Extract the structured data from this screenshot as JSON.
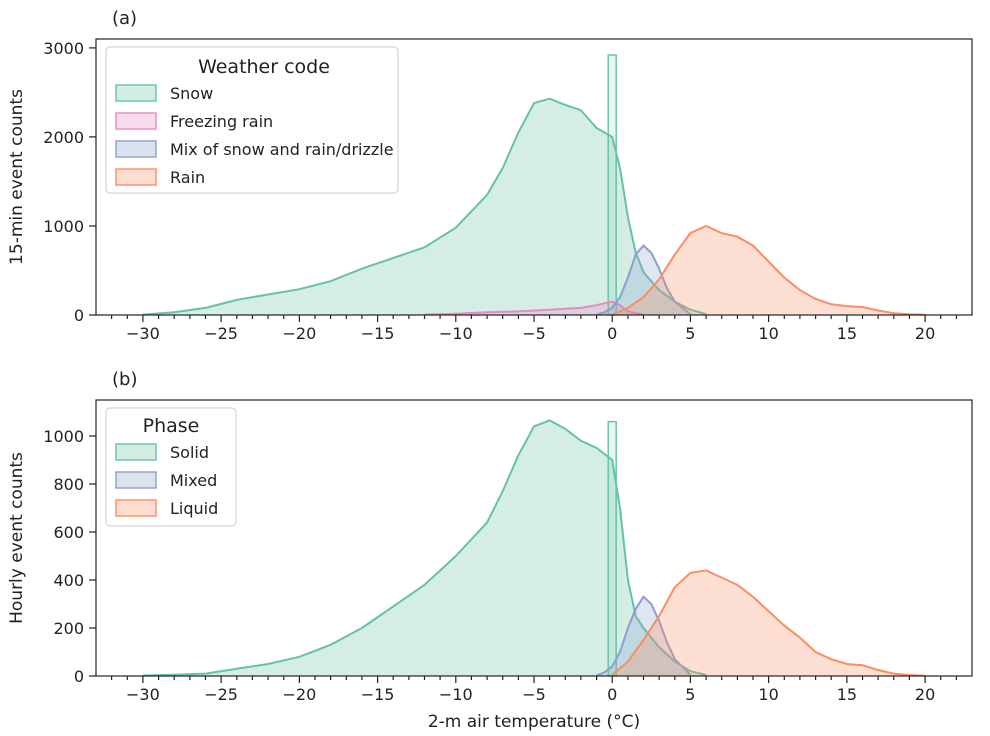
{
  "chart_data": [
    {
      "panel": "(a)",
      "type": "area",
      "xlabel": "",
      "ylabel": "15-min event counts",
      "xlim": [
        -33,
        23
      ],
      "ylim": [
        0,
        3100
      ],
      "xticks": [
        -30,
        -25,
        -20,
        -15,
        -10,
        -5,
        0,
        5,
        10,
        15,
        20
      ],
      "yticks": [
        0,
        1000,
        2000,
        3000
      ],
      "legend": {
        "title": "Weather code",
        "placement": "top-left"
      },
      "grid": false,
      "series": [
        {
          "name": "Snow",
          "color": "#66c2a5",
          "x": [
            -30,
            -28,
            -26,
            -24,
            -22,
            -20,
            -18,
            -16,
            -14,
            -12,
            -10,
            -8,
            -7,
            -6,
            -5,
            -4,
            -3,
            -2,
            -1,
            -0.5,
            0,
            0.5,
            1,
            1.5,
            2,
            3,
            4,
            5,
            6
          ],
          "y": [
            5,
            30,
            80,
            170,
            230,
            290,
            380,
            520,
            640,
            760,
            980,
            1350,
            1650,
            2050,
            2380,
            2430,
            2360,
            2300,
            2100,
            2050,
            2000,
            1650,
            1100,
            700,
            480,
            280,
            150,
            60,
            10
          ],
          "peak_bar": {
            "x": 0,
            "y": 2920
          }
        },
        {
          "name": "Freezing rain",
          "color": "#e78ac3",
          "x": [
            -12,
            -10,
            -8,
            -6,
            -4,
            -2,
            -1,
            0,
            0.5,
            1,
            2
          ],
          "y": [
            5,
            15,
            30,
            40,
            60,
            80,
            110,
            150,
            110,
            40,
            5
          ]
        },
        {
          "name": "Mix of snow and rain/drizzle",
          "color": "#8da0cb",
          "x": [
            -1,
            -0.5,
            0,
            0.5,
            1,
            1.5,
            2,
            2.5,
            3,
            3.5,
            4,
            5
          ],
          "y": [
            5,
            30,
            80,
            200,
            420,
            680,
            780,
            700,
            520,
            300,
            150,
            10
          ]
        },
        {
          "name": "Rain",
          "color": "#fc8d62",
          "x": [
            0,
            1,
            2,
            3,
            4,
            5,
            6,
            7,
            8,
            9,
            10,
            11,
            12,
            13,
            14,
            15,
            16,
            17,
            18,
            19,
            20
          ],
          "y": [
            5,
            80,
            200,
            400,
            680,
            920,
            1000,
            920,
            880,
            780,
            600,
            420,
            280,
            180,
            120,
            100,
            90,
            50,
            20,
            8,
            2
          ]
        }
      ]
    },
    {
      "panel": "(b)",
      "type": "area",
      "xlabel": "2-m air temperature (°C)",
      "ylabel": "Hourly event counts",
      "xlim": [
        -33,
        23
      ],
      "ylim": [
        0,
        1150
      ],
      "xticks": [
        -30,
        -25,
        -20,
        -15,
        -10,
        -5,
        0,
        5,
        10,
        15,
        20
      ],
      "yticks": [
        0,
        200,
        400,
        600,
        800,
        1000
      ],
      "legend": {
        "title": "Phase",
        "placement": "top-left"
      },
      "grid": false,
      "series": [
        {
          "name": "Solid",
          "color": "#66c2a5",
          "x": [
            -30,
            -28,
            -26,
            -24,
            -22,
            -20,
            -18,
            -16,
            -14,
            -12,
            -10,
            -8,
            -7,
            -6,
            -5,
            -4,
            -3,
            -2,
            -1,
            0,
            0.5,
            1,
            1.5,
            2,
            3,
            4,
            5,
            6
          ],
          "y": [
            2,
            5,
            10,
            30,
            50,
            80,
            130,
            200,
            290,
            380,
            500,
            640,
            770,
            920,
            1040,
            1065,
            1030,
            980,
            950,
            900,
            700,
            400,
            250,
            200,
            120,
            60,
            20,
            5
          ],
          "peak_bar": {
            "x": 0,
            "y": 1060
          }
        },
        {
          "name": "Mixed",
          "color": "#8da0cb",
          "x": [
            -1,
            -0.5,
            0,
            0.5,
            1,
            1.5,
            2,
            2.5,
            3,
            3.5,
            4,
            5
          ],
          "y": [
            3,
            15,
            40,
            100,
            200,
            280,
            330,
            300,
            230,
            140,
            70,
            5
          ]
        },
        {
          "name": "Liquid",
          "color": "#fc8d62",
          "x": [
            0,
            1,
            2,
            3,
            4,
            5,
            6,
            7,
            8,
            9,
            10,
            11,
            12,
            13,
            14,
            15,
            16,
            17,
            18,
            19,
            20
          ],
          "y": [
            5,
            60,
            150,
            250,
            370,
            430,
            440,
            410,
            380,
            330,
            270,
            210,
            160,
            100,
            70,
            50,
            45,
            25,
            10,
            4,
            1
          ]
        }
      ]
    }
  ]
}
